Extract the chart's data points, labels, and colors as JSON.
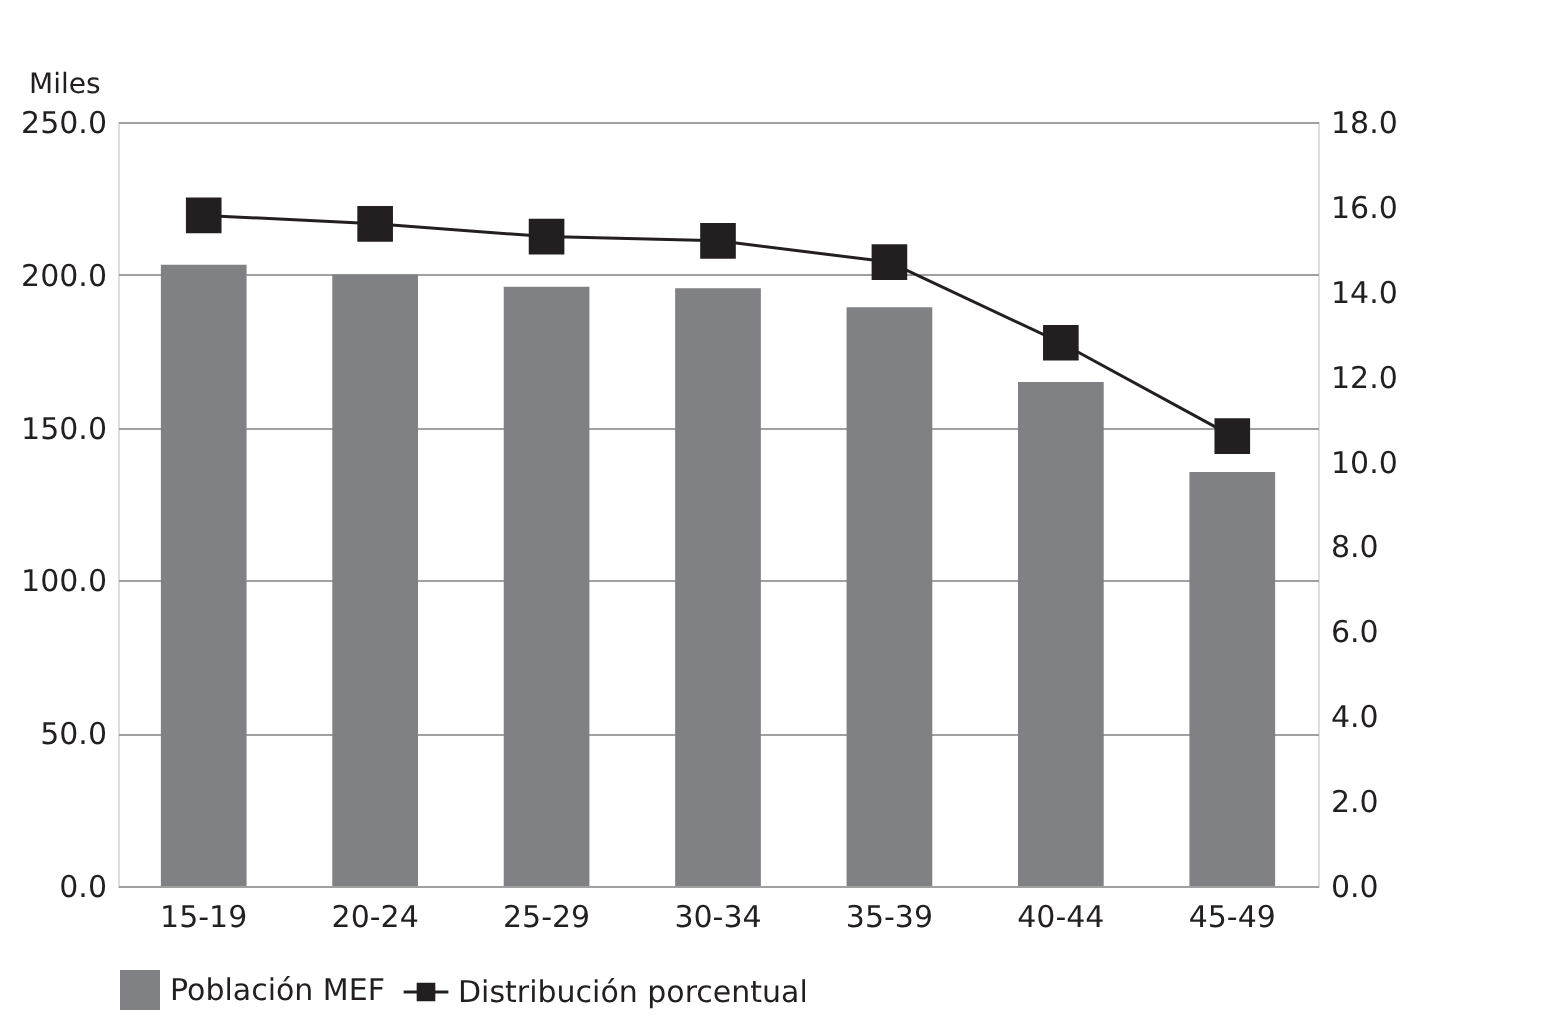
{
  "chart_data": {
    "type": "bar",
    "ylabel": "Miles",
    "categories": [
      "15-19",
      "20-24",
      "25-29",
      "30-34",
      "35-39",
      "40-44",
      "45-49"
    ],
    "series": [
      {
        "name": "Población MEF",
        "color": "#808184",
        "values": [
          203.3,
          200.1,
          196.1,
          195.6,
          189.4,
          164.9,
          135.5
        ]
      },
      {
        "name": "Distribución porcentual",
        "type": "line",
        "axis": "y2",
        "color": "#231f20",
        "marker": "square",
        "values": [
          15.8,
          15.6,
          15.3,
          15.2,
          14.7,
          12.8,
          10.6
        ]
      }
    ],
    "ylim": [
      0,
      250
    ],
    "yticks": [
      {
        "value": 0,
        "label": "0.0"
      },
      {
        "value": 50,
        "label": "50.0"
      },
      {
        "value": 100,
        "label": "100.0"
      },
      {
        "value": 150,
        "label": "150.0"
      },
      {
        "value": 200,
        "label": "200.0"
      },
      {
        "value": 250,
        "label": "250.0"
      }
    ],
    "y2lim": [
      0,
      18
    ],
    "y2ticks": [
      {
        "value": 0,
        "label": "0.0"
      },
      {
        "value": 2,
        "label": "2.0"
      },
      {
        "value": 4,
        "label": "4.0"
      },
      {
        "value": 6,
        "label": "6.0"
      },
      {
        "value": 8,
        "label": "8.0"
      },
      {
        "value": 10,
        "label": "10.0"
      },
      {
        "value": 12,
        "label": "12.0"
      },
      {
        "value": 14,
        "label": "14.0"
      },
      {
        "value": 16,
        "label": "16.0"
      },
      {
        "value": 18,
        "label": "18.0"
      }
    ],
    "grid": "y",
    "legend": "bottom"
  }
}
